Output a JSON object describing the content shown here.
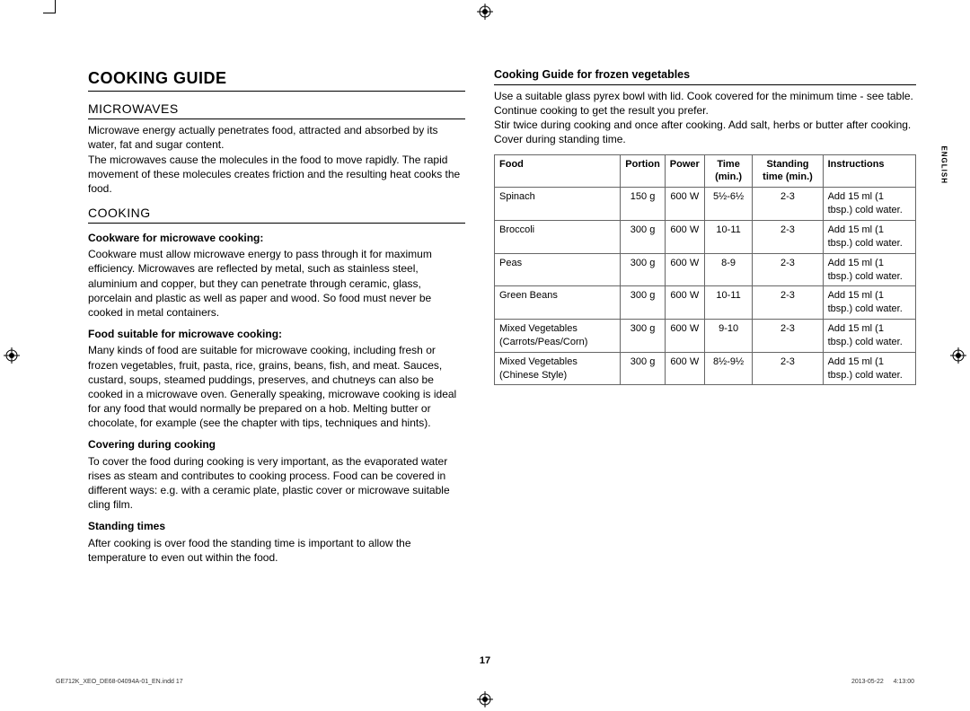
{
  "page": {
    "title": "COOKING GUIDE",
    "number": "17",
    "lang_tab": "ENGLISH",
    "footer_left": "GE712K_XEO_DE68-04094A-01_EN.indd   17",
    "footer_right": "2013-05-22     4:13:00"
  },
  "left": {
    "sec1_title": "MICROWAVES",
    "sec1_p1": "Microwave energy actually penetrates food, attracted and absorbed by its water, fat and sugar content.",
    "sec1_p2": "The microwaves cause the molecules in the food to move rapidly. The rapid movement of these molecules creates friction and the resulting heat cooks the food.",
    "sec2_title": "COOKING",
    "h1": "Cookware for microwave cooking:",
    "p1": "Cookware must allow microwave energy to pass through it for maximum efficiency. Microwaves are reflected by metal, such as stainless steel, aluminium and copper, but they can penetrate through ceramic, glass, porcelain and plastic as well as paper and wood. So food must never be cooked in metal containers.",
    "h2": "Food suitable for microwave cooking:",
    "p2": "Many kinds of food are suitable for microwave cooking, including fresh or frozen vegetables, fruit, pasta, rice, grains, beans, fish, and meat. Sauces, custard, soups, steamed puddings, preserves, and chutneys can also be cooked in a microwave oven. Generally speaking, microwave cooking is ideal for any food that would normally be prepared on a hob. Melting butter or chocolate, for example (see the chapter with tips, techniques and hints).",
    "h3": "Covering during cooking",
    "p3": "To cover the food during cooking is very important, as the evaporated water rises as steam and contributes to cooking process. Food can be covered in different ways: e.g. with a ceramic plate, plastic cover or microwave suitable cling film.",
    "h4": "Standing times",
    "p4": "After cooking is over food the standing time is important to allow the temperature to even out within the food."
  },
  "right": {
    "title": "Cooking Guide for frozen vegetables",
    "intro": "Use a suitable glass pyrex bowl with lid. Cook covered for the minimum time - see table. Continue cooking to get the result you prefer.\nStir twice during cooking and once after cooking. Add salt, herbs or butter after cooking. Cover during standing time.",
    "table": {
      "headers": [
        "Food",
        "Portion",
        "Power",
        "Time (min.)",
        "Standing time (min.)",
        "Instructions"
      ],
      "rows": [
        [
          "Spinach",
          "150 g",
          "600 W",
          "5½-6½",
          "2-3",
          "Add 15 ml (1 tbsp.) cold water."
        ],
        [
          "Broccoli",
          "300 g",
          "600 W",
          "10-11",
          "2-3",
          "Add 15 ml (1 tbsp.) cold water."
        ],
        [
          "Peas",
          "300 g",
          "600 W",
          "8-9",
          "2-3",
          "Add 15 ml (1 tbsp.) cold water."
        ],
        [
          "Green Beans",
          "300 g",
          "600 W",
          "10-11",
          "2-3",
          "Add 15 ml (1 tbsp.) cold water."
        ],
        [
          "Mixed Vegetables (Carrots/Peas/Corn)",
          "300 g",
          "600 W",
          "9-10",
          "2-3",
          "Add 15 ml (1 tbsp.) cold water."
        ],
        [
          "Mixed Vegetables (Chinese Style)",
          "300 g",
          "600 W",
          "8½-9½",
          "2-3",
          "Add 15 ml (1 tbsp.) cold water."
        ]
      ]
    }
  },
  "colors": {
    "text": "#000000",
    "border": "#666666",
    "bg": "#ffffff"
  }
}
